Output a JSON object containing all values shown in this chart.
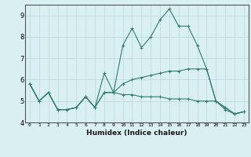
{
  "xlabel": "Humidex (Indice chaleur)",
  "x_values": [
    0,
    1,
    2,
    3,
    4,
    5,
    6,
    7,
    8,
    9,
    10,
    11,
    12,
    13,
    14,
    15,
    16,
    17,
    18,
    19,
    20,
    21,
    22,
    23
  ],
  "line1": [
    5.8,
    5.0,
    5.4,
    4.6,
    4.6,
    4.7,
    5.2,
    4.7,
    6.3,
    5.4,
    7.6,
    8.4,
    7.5,
    8.0,
    8.8,
    9.3,
    8.5,
    8.5,
    7.6,
    6.5,
    5.0,
    4.6,
    4.4,
    4.5
  ],
  "line2": [
    5.8,
    5.0,
    5.4,
    4.6,
    4.6,
    4.7,
    5.2,
    4.7,
    5.4,
    5.4,
    5.3,
    5.3,
    5.2,
    5.2,
    5.2,
    5.1,
    5.1,
    5.1,
    5.0,
    5.0,
    5.0,
    4.7,
    4.4,
    4.5
  ],
  "line3": [
    5.8,
    5.0,
    5.4,
    4.6,
    4.6,
    4.7,
    5.2,
    4.7,
    5.4,
    5.4,
    5.8,
    6.0,
    6.1,
    6.2,
    6.3,
    6.4,
    6.4,
    6.5,
    6.5,
    6.5,
    5.0,
    4.7,
    4.4,
    4.5
  ],
  "line_color": "#2e7d6e",
  "bg_color": "#d9eff2",
  "ylim": [
    4,
    9.5
  ],
  "yticks": [
    4,
    5,
    6,
    7,
    8,
    9
  ],
  "xlim": [
    -0.5,
    23.5
  ],
  "grid_color": "#b8d8dc"
}
